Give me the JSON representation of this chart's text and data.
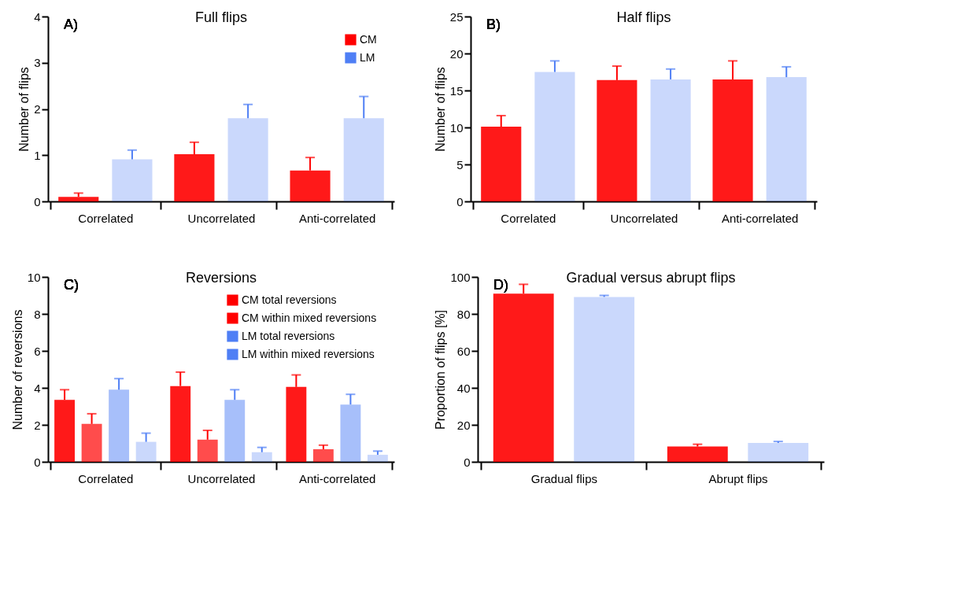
{
  "chart_data": [
    {
      "type": "bar",
      "title": "Full flips",
      "ylabel": "Number of flips",
      "annotations": [
        "A)"
      ],
      "categories": [
        "Correlated",
        "Uncorrelated",
        "Anti-correlated"
      ],
      "ylim": [
        0,
        4
      ],
      "yticks": [
        0,
        1,
        2,
        3,
        4
      ],
      "legend": "top right",
      "series": [
        {
          "name": "CM",
          "color": "#ff0000",
          "values": [
            0.1,
            1.02,
            0.67
          ],
          "errors": [
            [
              0.1,
              0.18
            ],
            [
              1.02,
              1.28
            ],
            [
              0.67,
              0.95
            ]
          ]
        },
        {
          "name": "LM",
          "color": "#4f7ff5",
          "values": [
            0.91,
            1.8,
            1.8
          ],
          "errors": [
            [
              0.91,
              1.11
            ],
            [
              1.8,
              2.1
            ],
            [
              1.8,
              2.27
            ]
          ]
        }
      ]
    },
    {
      "type": "bar",
      "title": "Half flips",
      "ylabel": "Number of flips",
      "annotations": [
        "B)"
      ],
      "categories": [
        "Correlated",
        "Uncorrelated",
        "Anti-correlated"
      ],
      "ylim": [
        0,
        25
      ],
      "yticks": [
        0,
        5,
        10,
        15,
        20,
        25
      ],
      "series": [
        {
          "color": "#ff0000",
          "values": [
            10.1,
            16.4,
            16.5
          ],
          "errors": [
            [
              10.1,
              11.6
            ],
            [
              16.4,
              18.3
            ],
            [
              16.5,
              19.0
            ]
          ]
        },
        {
          "color": "#4f7ff5",
          "values": [
            17.5,
            16.5,
            16.8
          ],
          "errors": [
            [
              17.5,
              19.0
            ],
            [
              16.5,
              17.9
            ],
            [
              16.8,
              18.2
            ]
          ]
        }
      ]
    },
    {
      "type": "bar",
      "title": "Reversions",
      "ylabel": "Number of reversions",
      "annotations": [
        "C)"
      ],
      "categories": [
        "Correlated",
        "Uncorrelated",
        "Anti-correlated"
      ],
      "ylim": [
        0,
        10
      ],
      "yticks": [
        0,
        2,
        4,
        6,
        8,
        10
      ],
      "legend": "top right",
      "series": [
        {
          "name": "CM total reversions",
          "color": "#ff0000",
          "values": [
            3.35,
            4.1,
            4.05
          ],
          "errors": [
            [
              3.35,
              3.9
            ],
            [
              4.1,
              4.85
            ],
            [
              4.05,
              4.7
            ]
          ]
        },
        {
          "name": "CM within mixed reversions",
          "color": "#ff0000",
          "values": [
            2.05,
            1.2,
            0.68
          ],
          "errors": [
            [
              2.05,
              2.6
            ],
            [
              1.2,
              1.7
            ],
            [
              0.68,
              0.9
            ]
          ]
        },
        {
          "name": "LM total reversions",
          "color": "#4f7ff5",
          "values": [
            3.9,
            3.35,
            3.1
          ],
          "errors": [
            [
              3.9,
              4.5
            ],
            [
              3.35,
              3.9
            ],
            [
              3.1,
              3.65
            ]
          ]
        },
        {
          "name": "LM within mixed reversions",
          "color": "#4f7ff5",
          "values": [
            1.08,
            0.52,
            0.38
          ],
          "errors": [
            [
              1.08,
              1.55
            ],
            [
              0.52,
              0.78
            ],
            [
              0.38,
              0.58
            ]
          ]
        }
      ]
    },
    {
      "type": "bar",
      "title": "Gradual versus abrupt flips",
      "ylabel": "Proportion of flips [%]",
      "annotations": [
        "D)"
      ],
      "categories": [
        "Gradual flips",
        "Abrupt flips"
      ],
      "ylim": [
        0,
        100
      ],
      "yticks": [
        0,
        20,
        40,
        60,
        80,
        100
      ],
      "series": [
        {
          "color": "#ff0000",
          "values": [
            91,
            8.3
          ],
          "errors": [
            [
              91,
              96
            ],
            [
              8.3,
              9.5
            ]
          ]
        },
        {
          "color": "#4f7ff5",
          "values": [
            89.2,
            10.2
          ],
          "errors": [
            [
              89.2,
              90
            ],
            [
              10.2,
              11
            ]
          ]
        }
      ]
    }
  ]
}
